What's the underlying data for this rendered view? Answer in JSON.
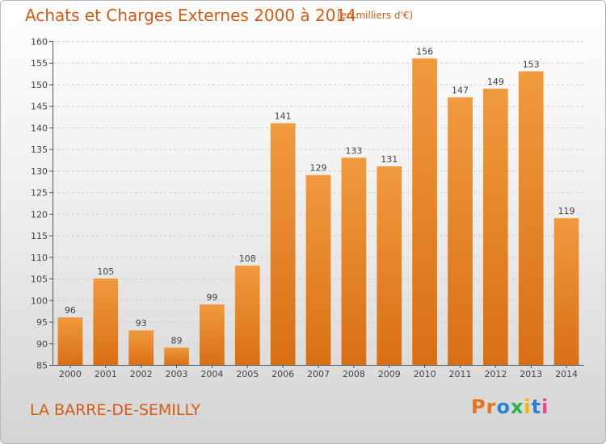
{
  "header": {
    "title": "Achats et Charges Externes 2000 à 2014",
    "subtitle": "(en milliers d'€)"
  },
  "footer": {
    "location": "LA BARRE-DE-SEMILLY",
    "logo_text": "Proxiti",
    "logo_colors": [
      "#e8731a",
      "#e8731a",
      "#2b7fd4",
      "#2bb24c",
      "#f2b705",
      "#2b7fd4",
      "#e84393"
    ]
  },
  "chart_data": {
    "type": "bar",
    "title": "Achats et Charges Externes 2000 à 2014",
    "subtitle": "(en milliers d'€)",
    "categories": [
      "2000",
      "2001",
      "2002",
      "2003",
      "2004",
      "2005",
      "2006",
      "2007",
      "2008",
      "2009",
      "2010",
      "2011",
      "2012",
      "2013",
      "2014"
    ],
    "values": [
      96,
      105,
      93,
      89,
      99,
      108,
      141,
      129,
      133,
      131,
      156,
      147,
      149,
      153,
      119
    ],
    "ylim": [
      85,
      160
    ],
    "yticks": [
      85,
      90,
      95,
      100,
      105,
      110,
      115,
      120,
      125,
      130,
      135,
      140,
      145,
      150,
      155,
      160
    ],
    "grid": true,
    "bar_color": "#f19a3e",
    "bar_color_dark": "#d96f14"
  }
}
